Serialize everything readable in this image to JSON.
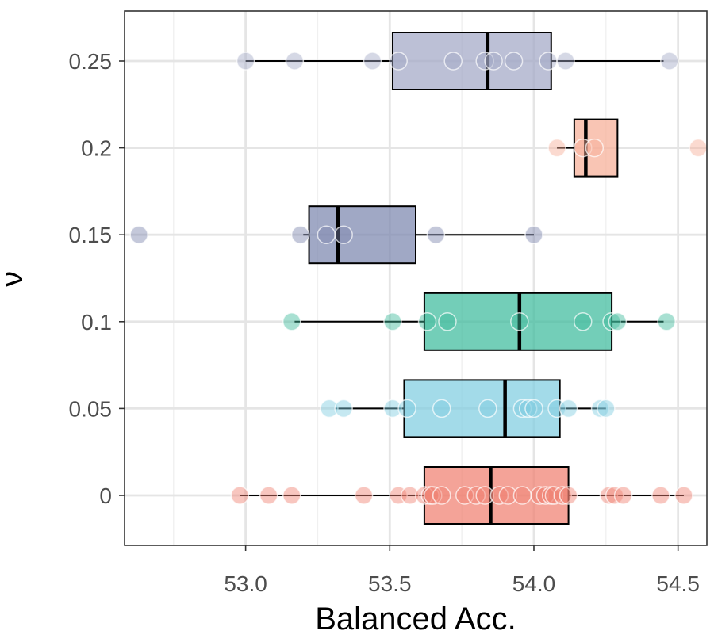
{
  "chart_data": {
    "type": "box",
    "orientation": "horizontal",
    "title": "",
    "xlabel": "Balanced Acc.",
    "ylabel": "ν",
    "xlim": [
      52.58,
      54.6
    ],
    "x_ticks": [
      53.0,
      53.5,
      54.0,
      54.5
    ],
    "x_tick_labels": [
      "53.0",
      "53.5",
      "54.0",
      "54.5"
    ],
    "x_minor_ticks": [
      52.75,
      53.25,
      53.75,
      54.25
    ],
    "grid": true,
    "theme": "bw",
    "categories": [
      "0",
      "0.05",
      "0.1",
      "0.15",
      "0.2",
      "0.25"
    ],
    "series": [
      {
        "category": "0",
        "color": "#F08070",
        "box": {
          "whisker_low": 52.98,
          "q1": 53.62,
          "median": 53.85,
          "q3": 54.12,
          "whisker_high": 54.52
        },
        "points": [
          52.98,
          53.08,
          53.16,
          53.41,
          53.53,
          53.57,
          53.62,
          53.64,
          53.65,
          53.68,
          53.76,
          53.8,
          53.83,
          53.88,
          53.91,
          53.96,
          54.02,
          54.04,
          54.06,
          54.07,
          54.1,
          54.12,
          54.26,
          54.28,
          54.31,
          54.44,
          54.52
        ]
      },
      {
        "category": "0.05",
        "color": "#7FCDE0",
        "box": {
          "whisker_low": 53.31,
          "q1": 53.55,
          "median": 53.9,
          "q3": 54.09,
          "whisker_high": 54.25
        },
        "points": [
          53.29,
          53.34,
          53.51,
          53.56,
          53.68,
          53.84,
          53.96,
          53.98,
          54.0,
          54.08,
          54.12,
          54.23,
          54.25
        ]
      },
      {
        "category": "0.1",
        "color": "#3DBB9C",
        "box": {
          "whisker_low": 53.17,
          "q1": 53.62,
          "median": 53.95,
          "q3": 54.27,
          "whisker_high": 54.45
        },
        "points": [
          53.16,
          53.51,
          53.63,
          53.7,
          53.95,
          54.17,
          54.27,
          54.29,
          54.46
        ]
      },
      {
        "category": "0.15",
        "color": "#7C86AE",
        "box": {
          "whisker_low": 53.2,
          "q1": 53.22,
          "median": 53.32,
          "q3": 53.59,
          "whisker_high": 54.0
        },
        "points": [
          52.63,
          53.19,
          53.28,
          53.34,
          53.66,
          54.0
        ],
        "outliers": [
          52.63
        ]
      },
      {
        "category": "0.2",
        "color": "#F6AE97",
        "box": {
          "whisker_low": 54.08,
          "q1": 54.14,
          "median": 54.18,
          "q3": 54.29,
          "whisker_high": 54.29
        },
        "points": [
          54.08,
          54.17,
          54.21,
          54.57
        ],
        "outliers": [
          54.57
        ]
      },
      {
        "category": "0.25",
        "color": "#A2A8C6",
        "box": {
          "whisker_low": 53.0,
          "q1": 53.51,
          "median": 53.84,
          "q3": 54.06,
          "whisker_high": 54.45
        },
        "points": [
          53.0,
          53.17,
          53.44,
          53.53,
          53.72,
          53.83,
          53.86,
          53.93,
          54.05,
          54.11,
          54.47
        ]
      }
    ]
  }
}
